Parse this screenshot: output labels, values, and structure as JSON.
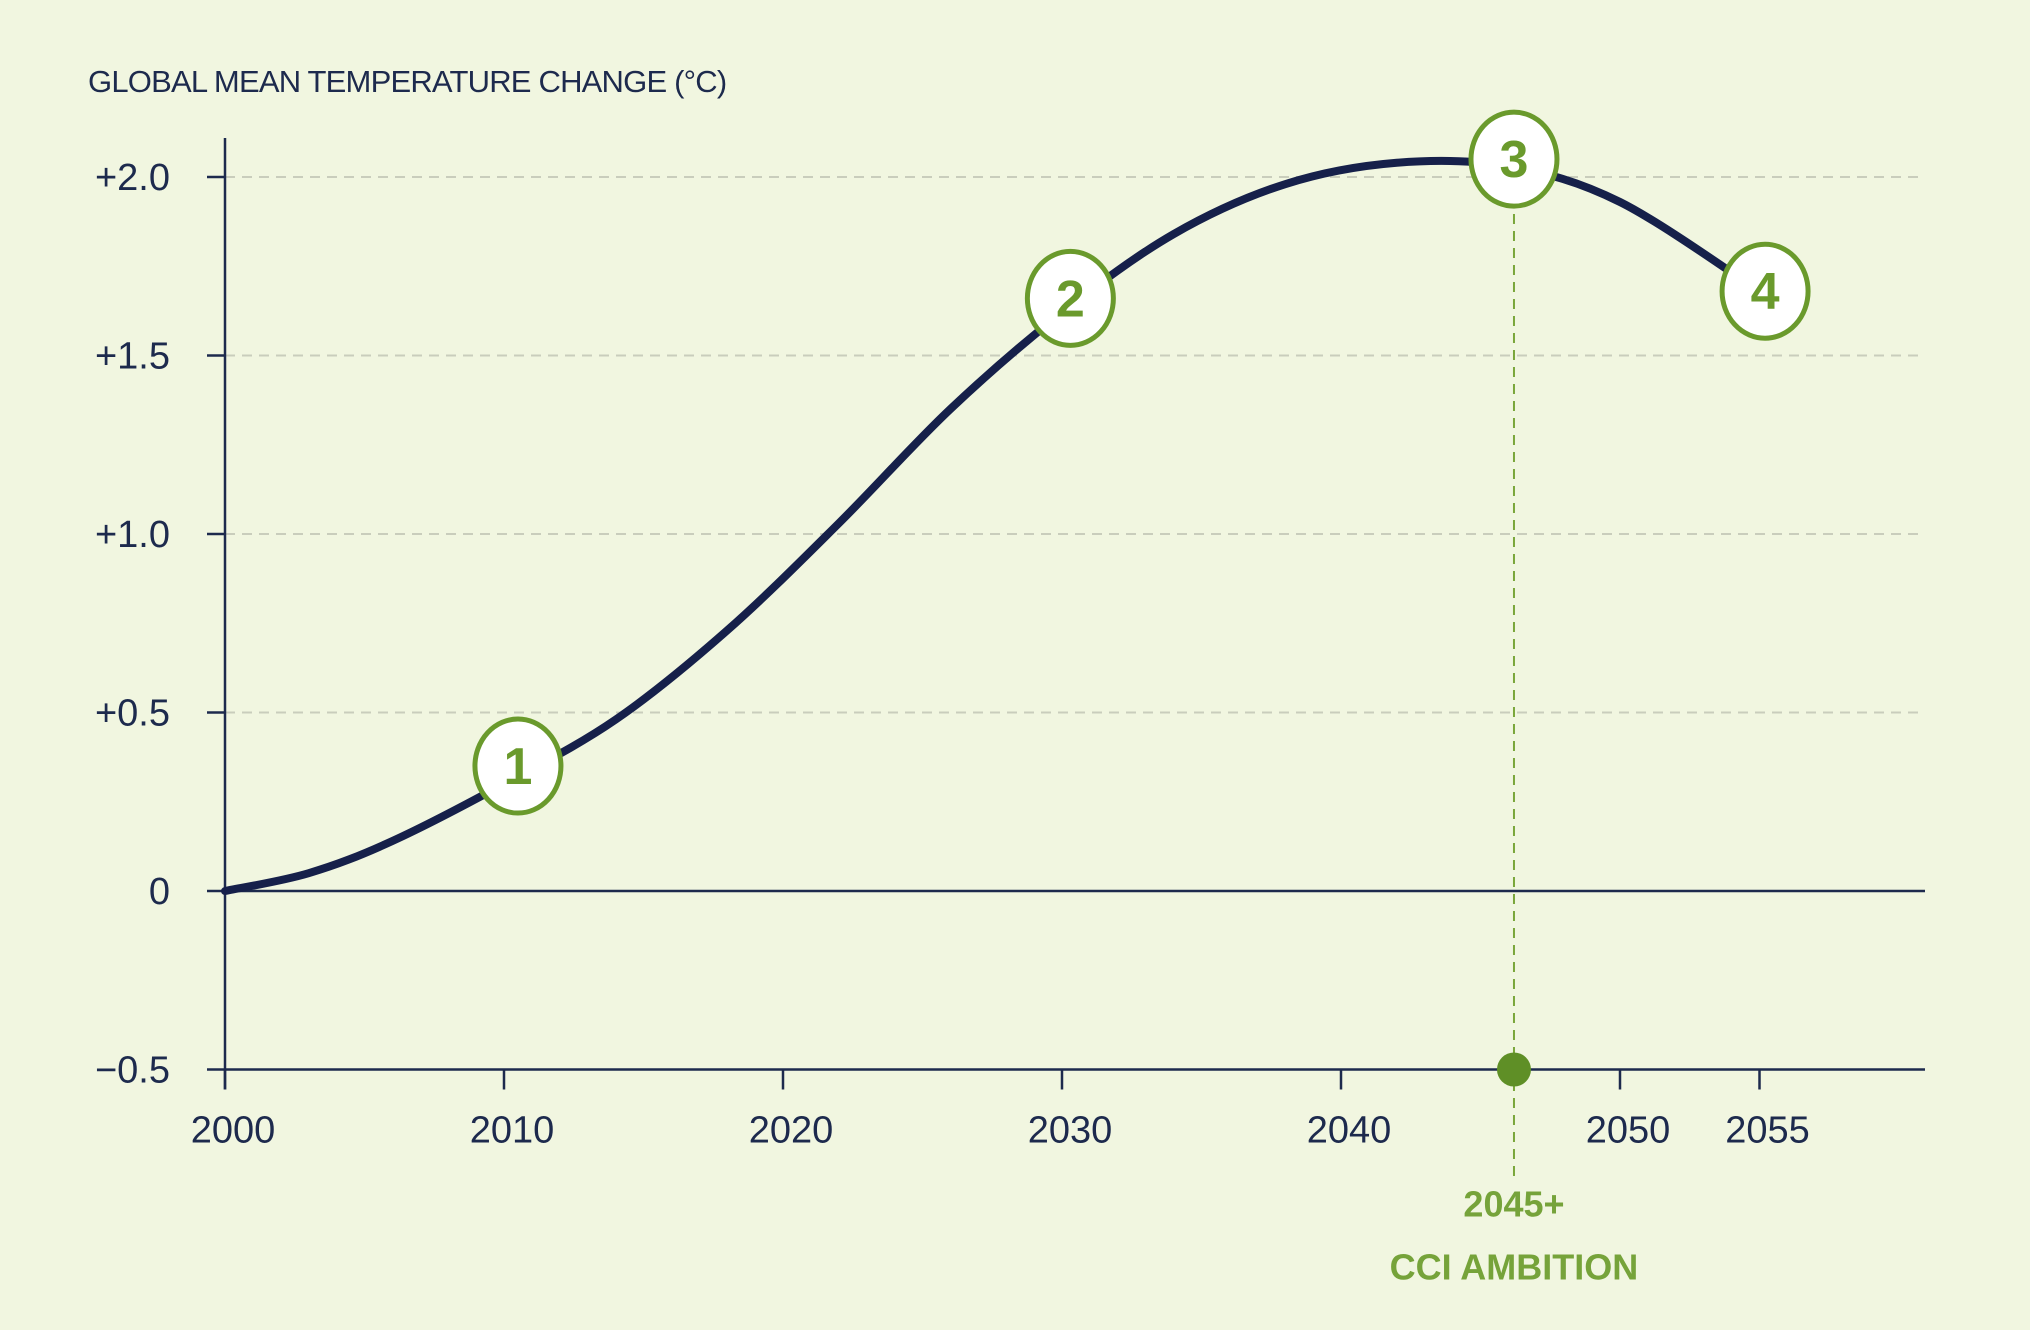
{
  "chart_data": {
    "type": "line",
    "ylabel": "GLOBAL MEAN TEMPERATURE CHANGE (°C)",
    "xlabel": "",
    "xlim": [
      2000,
      2057
    ],
    "ylim": [
      -0.5,
      2.05
    ],
    "x_ticks": [
      2000,
      2010,
      2020,
      2030,
      2040,
      2050,
      2055
    ],
    "x_tick_labels": [
      "2000",
      "2010",
      "2020",
      "2030",
      "2040",
      "2050",
      "2055"
    ],
    "y_ticks": [
      -0.5,
      0,
      0.5,
      1.0,
      1.5,
      2.0
    ],
    "y_tick_labels": [
      "−0.5",
      "0",
      "+0.5",
      "+1.0",
      "+1.5",
      "+2.0"
    ],
    "grid": true,
    "series": [
      {
        "x": [
          2000,
          2003,
          2006,
          2010,
          2014,
          2018,
          2022,
          2026,
          2030,
          2034,
          2038,
          2042,
          2046,
          2050,
          2055
        ],
        "values": [
          0.0,
          0.05,
          0.14,
          0.3,
          0.48,
          0.73,
          1.03,
          1.35,
          1.62,
          1.84,
          1.98,
          2.04,
          2.03,
          1.93,
          1.68
        ]
      }
    ],
    "markers": [
      {
        "label": "1",
        "x": 2010.5,
        "y": 0.35
      },
      {
        "label": "2",
        "x": 2030.3,
        "y": 1.66
      },
      {
        "label": "3",
        "x": 2046.2,
        "y": 2.05
      },
      {
        "label": "4",
        "x": 2055.2,
        "y": 1.68
      }
    ],
    "annotation": {
      "x": 2046.2,
      "y": -0.5,
      "line1": "2045+",
      "line2": "CCI AMBITION"
    },
    "colors": {
      "background": "#f1f6e0",
      "curve": "#16204a",
      "accent": "#6a9a2c",
      "axis": "#1d2a4d",
      "grid": "#c9cdbc"
    }
  }
}
